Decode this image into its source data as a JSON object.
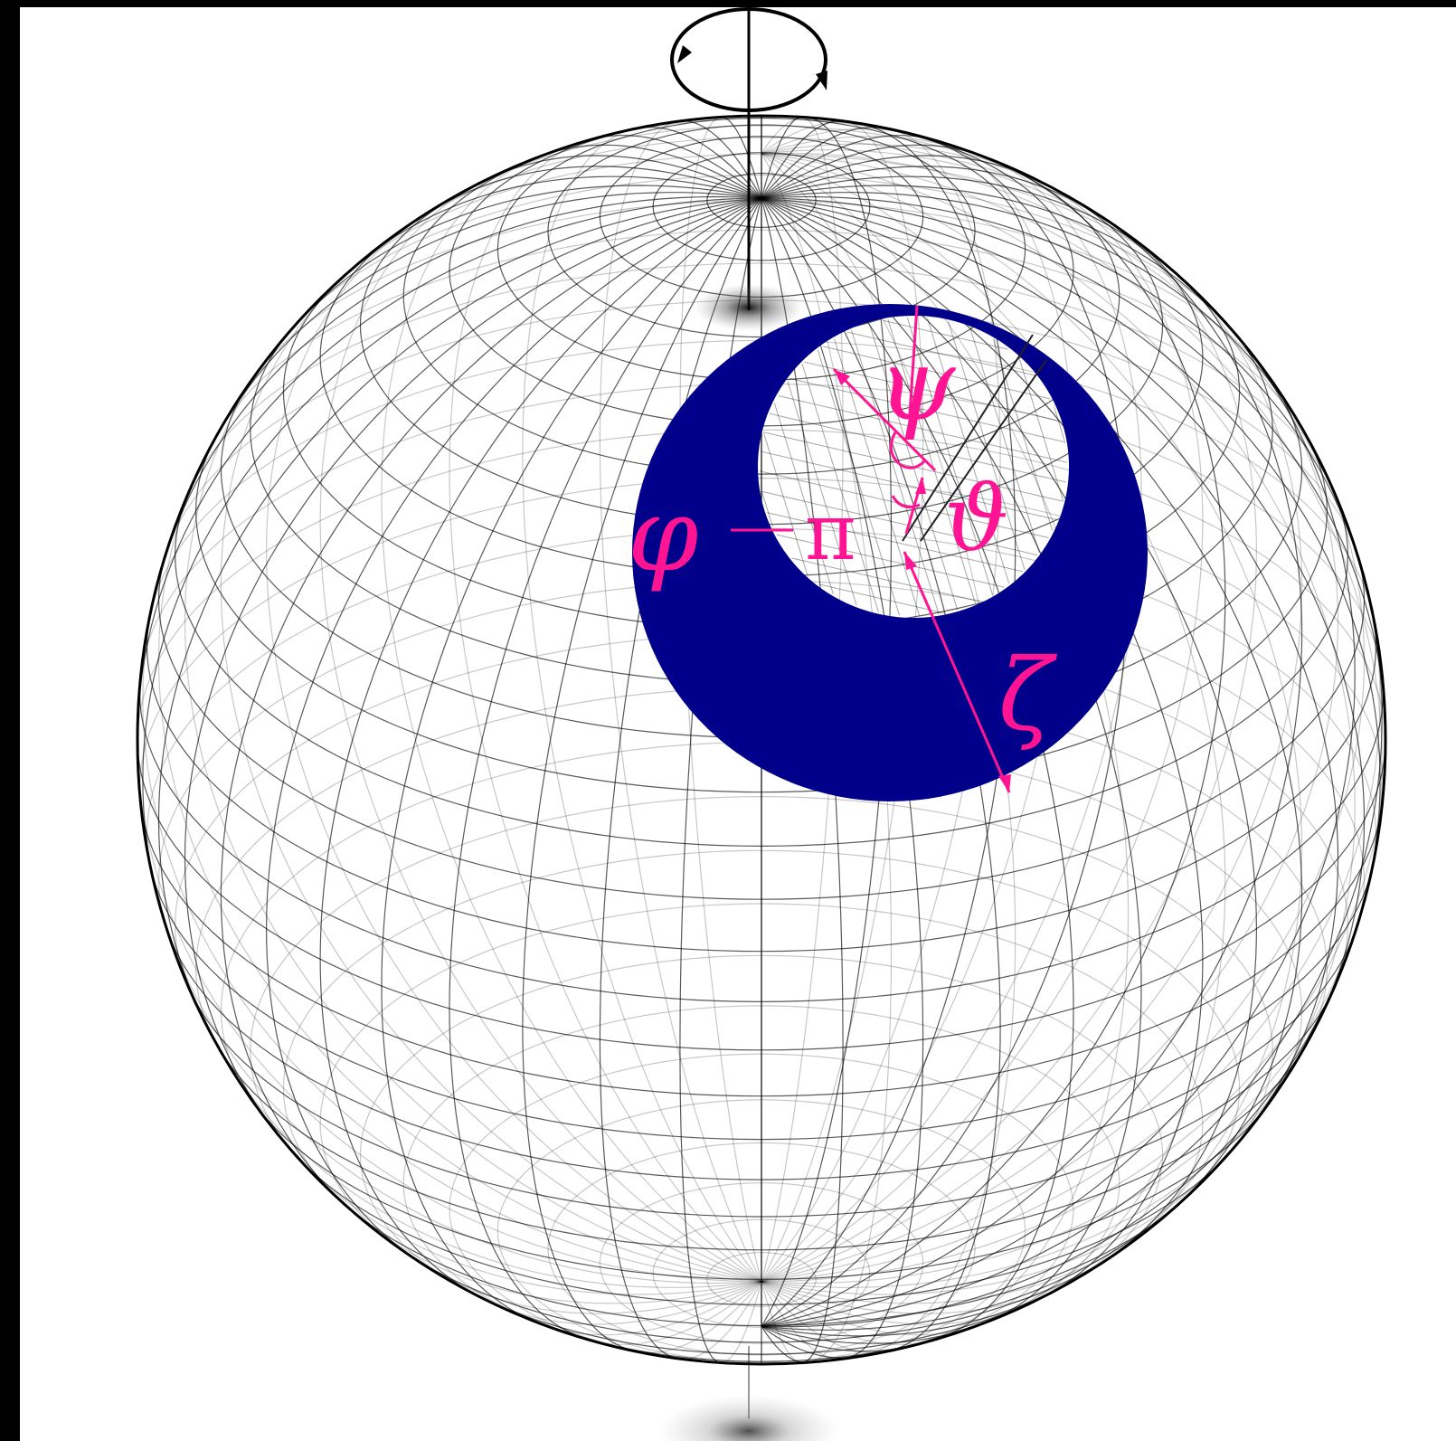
{
  "colors": {
    "background": "#000000",
    "canvas": "#ffffff",
    "grid": "#000000",
    "annulus": "#00008b",
    "annotation": "#ff1493"
  },
  "labels": {
    "psi": "ψ",
    "theta": "ϑ",
    "pi": "π",
    "phi": "φ",
    "zeta": "ζ"
  },
  "icons": {
    "rotation": "rotation-arrow-icon"
  }
}
